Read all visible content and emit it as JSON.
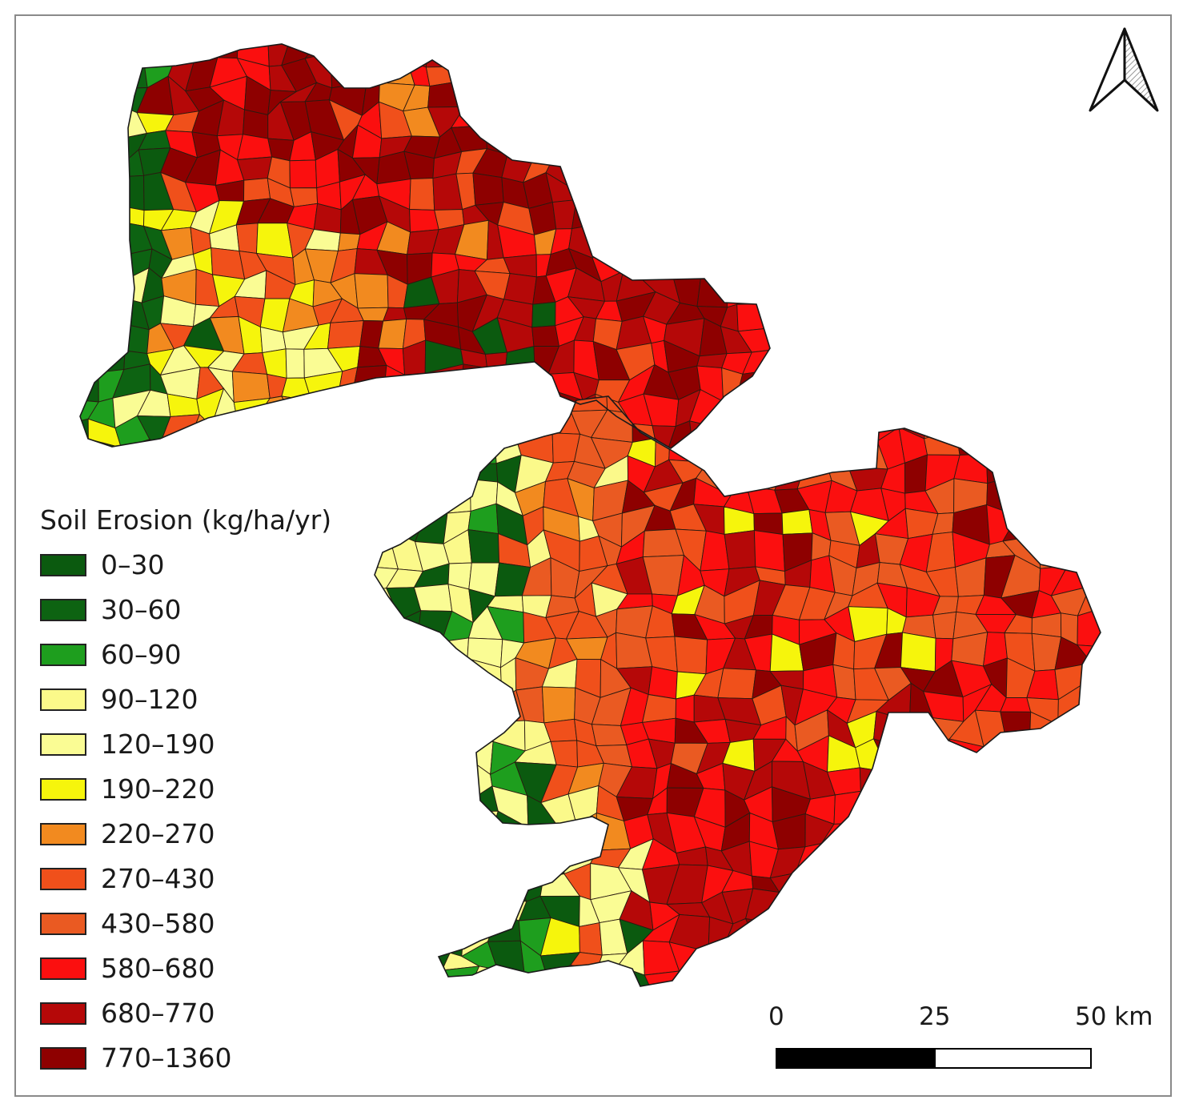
{
  "legend": {
    "title": "Soil Erosion (kg/ha/yr)",
    "classes": [
      {
        "label": "0–30",
        "color": "#0b5a0f"
      },
      {
        "label": "30–60",
        "color": "#0d6312"
      },
      {
        "label": "60–90",
        "color": "#1e9e1e"
      },
      {
        "label": "90–120",
        "color": "#fbf98a"
      },
      {
        "label": "120–190",
        "color": "#fafc94"
      },
      {
        "label": "190–220",
        "color": "#f6f50c"
      },
      {
        "label": "220–270",
        "color": "#f28a1f"
      },
      {
        "label": "270–430",
        "color": "#f0501b"
      },
      {
        "label": "430–580",
        "color": "#ea5a22"
      },
      {
        "label": "580–680",
        "color": "#fb0f0f"
      },
      {
        "label": "680–770",
        "color": "#b50808"
      },
      {
        "label": "770–1360",
        "color": "#8e0000"
      }
    ]
  },
  "scale_bar": {
    "labels": [
      "0",
      "25",
      "50 km"
    ]
  },
  "north_arrow": {
    "icon": "north-arrow-icon"
  }
}
